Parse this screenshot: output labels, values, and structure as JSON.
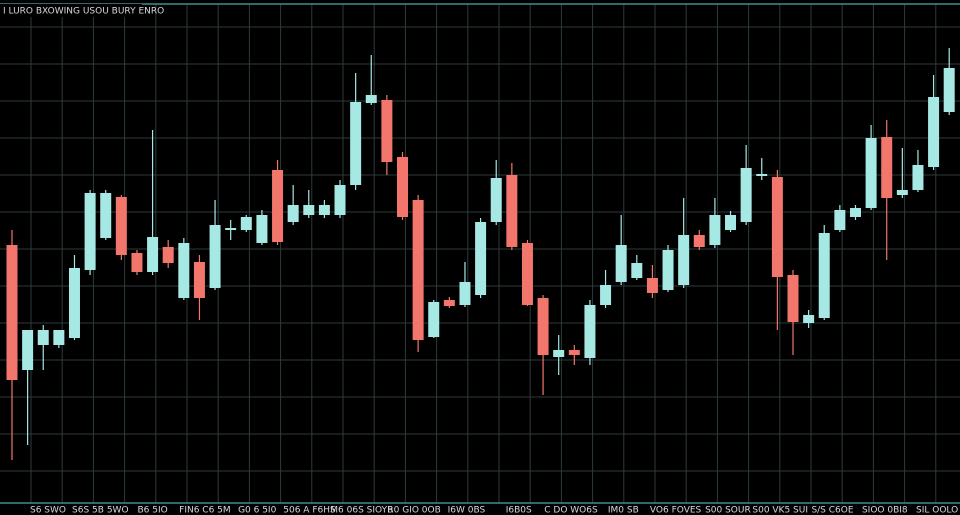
{
  "chart_data": {
    "type": "candlestick",
    "title": "I LURO BXOWING USOU BURY ENRO",
    "x_labels": [
      "S6 SWO",
      "S6S 5B 5WO",
      "B6 5IO",
      "FIN6 C6 5M",
      "G0 6 5I0",
      "506 A F6HS",
      "M6 06S SIOYB",
      "R0 GIO 0OB",
      "I6W 0BS",
      "I6B0S",
      "C DO WO6S",
      "IM0 SB",
      "VO6 FOVES",
      "S00 SOUR",
      "S00 VK5 SUI",
      "S/S C6OE",
      "SIOO 0BI8",
      "SIL OOLO"
    ],
    "open": [
      255,
      130,
      155,
      155,
      162,
      230,
      262,
      303,
      247,
      228,
      253,
      202,
      238,
      212,
      270,
      270,
      257,
      330,
      278,
      285,
      285,
      285,
      315,
      397,
      400,
      343,
      300,
      163,
      200,
      195,
      205,
      278,
      325,
      257,
      202,
      143,
      150,
      142,
      195,
      218,
      222,
      222,
      210,
      215,
      265,
      255,
      270,
      278,
      324,
      323,
      225,
      177,
      182,
      270,
      283,
      292,
      363,
      305,
      310,
      333,
      388
    ],
    "high": [
      270,
      170,
      175,
      170,
      245,
      310,
      310,
      305,
      250,
      370,
      260,
      262,
      245,
      300,
      280,
      285,
      290,
      340,
      315,
      310,
      300,
      320,
      427,
      445,
      405,
      348,
      305,
      200,
      203,
      238,
      282,
      340,
      337,
      260,
      205,
      165,
      155,
      200,
      230,
      285,
      245,
      235,
      255,
      302,
      270,
      302,
      289,
      355,
      342,
      330,
      230,
      190,
      275,
      295,
      295,
      375,
      380,
      352,
      350,
      425,
      452
    ],
    "low": [
      40,
      55,
      130,
      152,
      160,
      225,
      260,
      240,
      225,
      225,
      232,
      200,
      180,
      210,
      260,
      268,
      255,
      255,
      275,
      282,
      282,
      282,
      310,
      395,
      325,
      280,
      148,
      162,
      192,
      193,
      202,
      275,
      250,
      194,
      105,
      125,
      135,
      135,
      192,
      215,
      220,
      202,
      208,
      212,
      250,
      252,
      268,
      275,
      320,
      170,
      145,
      172,
      180,
      268,
      280,
      290,
      240,
      302,
      308,
      330,
      385
    ],
    "close": [
      120,
      170,
      170,
      170,
      232,
      307,
      307,
      245,
      228,
      263,
      237,
      257,
      202,
      275,
      272,
      283,
      285,
      258,
      295,
      295,
      295,
      315,
      398,
      405,
      338,
      283,
      160,
      198,
      194,
      218,
      278,
      322,
      253,
      195,
      145,
      150,
      145,
      195,
      215,
      255,
      237,
      207,
      250,
      265,
      253,
      285,
      285,
      332,
      326,
      223,
      178,
      185,
      267,
      290,
      292,
      362,
      302,
      310,
      335,
      403,
      432
    ],
    "ylim": [
      0,
      500
    ],
    "up_color": "#a6e8e4",
    "down_color": "#f2766b",
    "grid": true
  }
}
